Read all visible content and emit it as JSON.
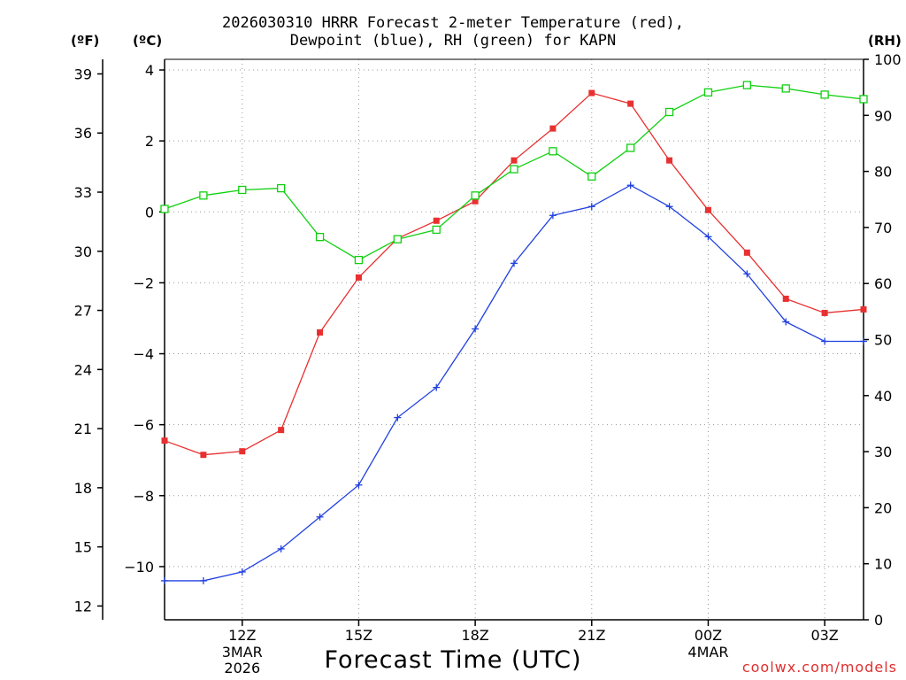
{
  "header": {
    "title_line1": "2026030310 HRRR Forecast 2-meter Temperature (red),",
    "title_line2": "Dewpoint (blue), RH (green) for KAPN"
  },
  "units": {
    "fahrenheit": "(ºF)",
    "celsius": "(ºC)",
    "rh": "(RH)"
  },
  "footer": {
    "xlabel": "Forecast Time (UTC)",
    "credit": "coolwx.com/models"
  },
  "colors": {
    "temperature": "#e83030",
    "dewpoint": "#2040e0",
    "rh": "#10d010",
    "grid": "#999999"
  },
  "chart_data": {
    "type": "line",
    "title": "2026030310 HRRR Forecast 2-meter Temperature (red), Dewpoint (blue), RH (green) for KAPN",
    "xlabel": "Forecast Time (UTC)",
    "x": [
      10,
      11,
      12,
      13,
      14,
      15,
      16,
      17,
      18,
      19,
      20,
      21,
      22,
      23,
      24,
      25,
      26,
      27,
      28
    ],
    "xlim": [
      10,
      28
    ],
    "xticks": [
      {
        "x": 12,
        "label": "12Z",
        "sub1": "3MAR",
        "sub2": "2026"
      },
      {
        "x": 15,
        "label": "15Z",
        "sub1": "",
        "sub2": ""
      },
      {
        "x": 18,
        "label": "18Z",
        "sub1": "",
        "sub2": ""
      },
      {
        "x": 21,
        "label": "21Z",
        "sub1": "",
        "sub2": ""
      },
      {
        "x": 24,
        "label": "00Z",
        "sub1": "4MAR",
        "sub2": ""
      },
      {
        "x": 27,
        "label": "03Z",
        "sub1": "",
        "sub2": ""
      }
    ],
    "y_celsius": {
      "lim": [
        -11.5,
        4.3
      ],
      "ticks": [
        4,
        2,
        0,
        -2,
        -4,
        -6,
        -8,
        -10
      ],
      "labels": [
        "4",
        "2",
        "0",
        "−2",
        "−4",
        "−6",
        "−8",
        "−10"
      ]
    },
    "y_fahrenheit": {
      "lim": [
        11.3,
        39.74
      ],
      "ticks": [
        39,
        36,
        33,
        30,
        27,
        24,
        21,
        18,
        15,
        12
      ],
      "labels": [
        "39",
        "36",
        "33",
        "30",
        "27",
        "24",
        "21",
        "18",
        "15",
        "12"
      ]
    },
    "y_rh": {
      "lim": [
        0,
        100
      ],
      "ticks": [
        100,
        90,
        80,
        70,
        60,
        50,
        40,
        30,
        20,
        10,
        0
      ],
      "labels": [
        "100",
        "90",
        "80",
        "70",
        "60",
        "50",
        "40",
        "30",
        "20",
        "10",
        "0"
      ]
    },
    "series": [
      {
        "name": "Temperature (red)",
        "axis": "celsius",
        "marker": "filled-square",
        "values": [
          -6.45,
          -6.85,
          -6.75,
          -6.15,
          -3.4,
          -1.85,
          -0.75,
          -0.25,
          0.3,
          1.45,
          2.35,
          3.35,
          3.05,
          1.45,
          0.05,
          -1.15,
          -2.45,
          -2.85,
          -2.75
        ]
      },
      {
        "name": "Dewpoint (blue)",
        "axis": "celsius",
        "marker": "plus",
        "values": [
          -10.4,
          -10.4,
          -10.15,
          -9.5,
          -8.6,
          -7.7,
          -5.8,
          -4.95,
          -3.3,
          -1.45,
          -0.1,
          0.15,
          0.75,
          0.15,
          -0.7,
          -1.75,
          -3.1,
          -3.65,
          -3.65
        ]
      },
      {
        "name": "RH (green)",
        "axis": "rh",
        "marker": "open-square",
        "values": [
          73.3,
          75.7,
          76.7,
          77.0,
          68.3,
          64.2,
          67.9,
          69.6,
          75.7,
          80.4,
          83.6,
          79.1,
          84.2,
          90.6,
          94.1,
          95.4,
          94.8,
          93.7,
          92.9
        ]
      }
    ]
  }
}
